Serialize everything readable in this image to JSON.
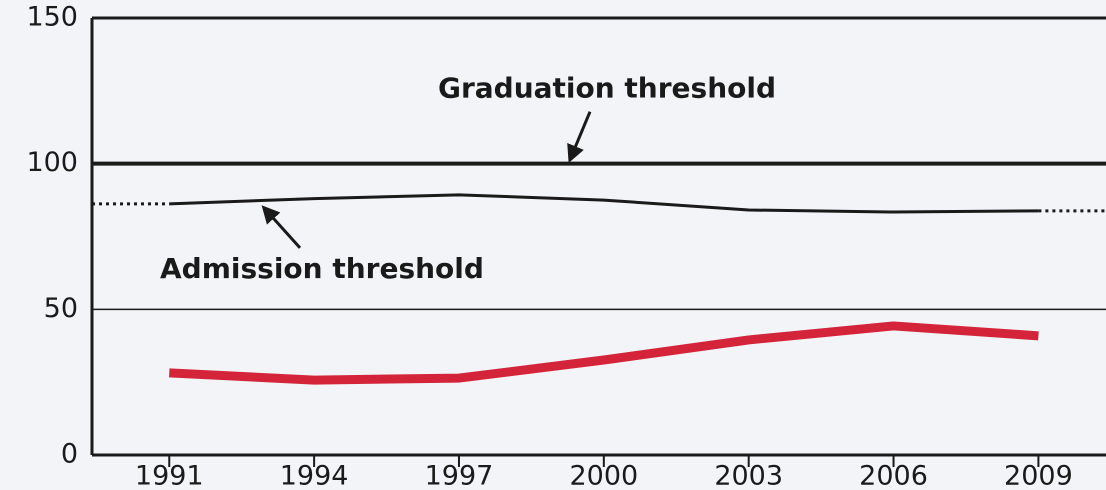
{
  "chart_data": {
    "type": "line",
    "x": [
      1991,
      1994,
      1997,
      2000,
      2003,
      2006,
      2009
    ],
    "xlim": [
      1989.4,
      2010.4
    ],
    "xticks": [
      1991,
      1994,
      1997,
      2000,
      2003,
      2006,
      2009
    ],
    "ylim": [
      0,
      150
    ],
    "yticks": [
      0,
      50,
      100,
      150
    ],
    "series": [
      {
        "color": "#d4243a",
        "values": [
          28.2,
          25.7,
          26.4,
          32.6,
          39.5,
          44.3,
          40.9
        ]
      },
      {
        "name": "Admission threshold",
        "color": "#1a1a1a",
        "values": [
          86.2,
          88,
          89.3,
          87.5,
          84.1,
          83.4,
          83.8
        ]
      }
    ],
    "hlines": [
      {
        "name": "Graduation threshold",
        "value": 100,
        "color": "#1a1a1a"
      }
    ]
  }
}
